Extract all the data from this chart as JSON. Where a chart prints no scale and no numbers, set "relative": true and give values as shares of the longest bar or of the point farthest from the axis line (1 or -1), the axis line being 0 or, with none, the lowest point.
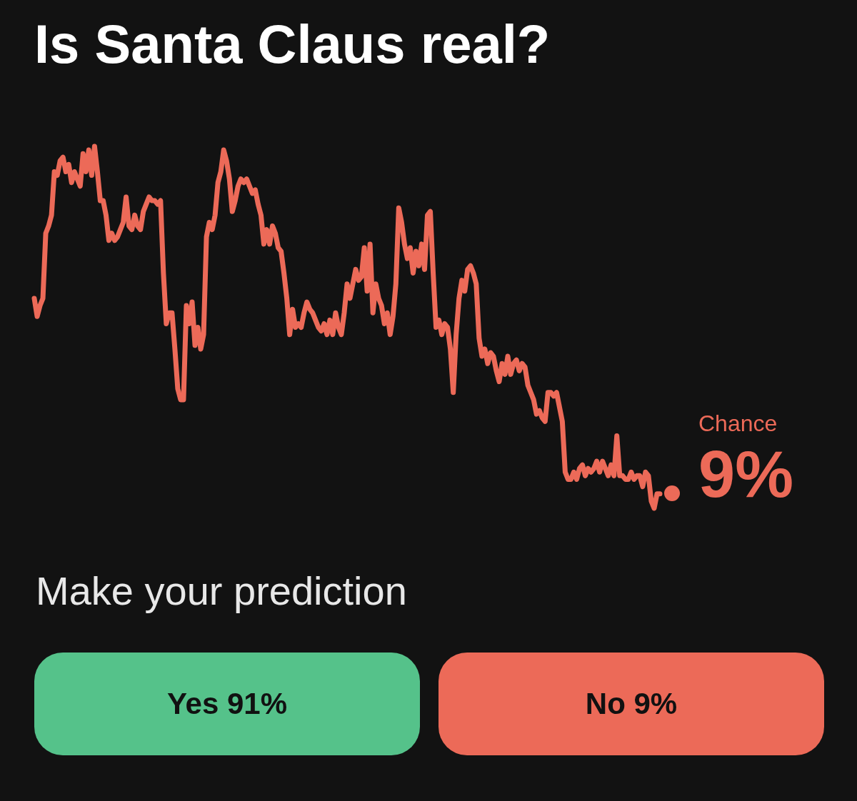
{
  "chart_data": {
    "type": "line",
    "title": "Is Santa Claus real?",
    "relative": true,
    "legend": false,
    "grid": false,
    "marker": "none",
    "line_style": "solid",
    "annotations": [
      "Chance",
      "9%",
      "Make your prediction",
      "Yes 91%",
      "No 9%"
    ],
    "categories": [
      null,
      null,
      null,
      null,
      null,
      null,
      null,
      null,
      null,
      null,
      null,
      null,
      null,
      null,
      null,
      null,
      null,
      null,
      null,
      null,
      null,
      null,
      null,
      null,
      null,
      null,
      null,
      null,
      null,
      null,
      null,
      null,
      null,
      null,
      null,
      null,
      null,
      null,
      null,
      null,
      null,
      null,
      null,
      null,
      null,
      null,
      null,
      null,
      null,
      null,
      null,
      null,
      null,
      null,
      null,
      null,
      null,
      null,
      null,
      null,
      null,
      null,
      null,
      null,
      null,
      null,
      null,
      null,
      null,
      null,
      null,
      null,
      null,
      null,
      null,
      null,
      null,
      null,
      null,
      null,
      null,
      null,
      null,
      null,
      null,
      null,
      null,
      null,
      null,
      null,
      null,
      null,
      null,
      null,
      null,
      null,
      null,
      null,
      null,
      null,
      null,
      null,
      null,
      null,
      null,
      null,
      null,
      null,
      null,
      null,
      null,
      null,
      null,
      null,
      null,
      null,
      null,
      null,
      null,
      null,
      null,
      null,
      null,
      null,
      null,
      null,
      null,
      null,
      null,
      null,
      null,
      null,
      null,
      null,
      null,
      null,
      null,
      null,
      null,
      null,
      null,
      null,
      null,
      null,
      null,
      null,
      null,
      null,
      null,
      null,
      null,
      null,
      null,
      null,
      null,
      null,
      null,
      null,
      null,
      null,
      null,
      null,
      null,
      null,
      null,
      null,
      null,
      null,
      null,
      null,
      null,
      null,
      null,
      null,
      null,
      null,
      null,
      null,
      null,
      null,
      null,
      null,
      null,
      null,
      null,
      null,
      null,
      null,
      null,
      null,
      null,
      null,
      null,
      null,
      null,
      null,
      null,
      null,
      null,
      null,
      null,
      null,
      null,
      null,
      null,
      null,
      null,
      null,
      null,
      null,
      null,
      null,
      null,
      null,
      null,
      null,
      null,
      null,
      null
    ],
    "series": [
      {
        "color": "#ec6a58",
        "values": [
          0.58,
          0.53,
          0.56,
          0.58,
          0.76,
          0.78,
          0.81,
          0.93,
          0.92,
          0.96,
          0.97,
          0.93,
          0.95,
          0.9,
          0.93,
          0.91,
          0.89,
          0.98,
          0.93,
          0.99,
          0.92,
          1,
          0.93,
          0.85,
          0.85,
          0.81,
          0.74,
          0.76,
          0.74,
          0.75,
          0.77,
          0.79,
          0.86,
          0.78,
          0.77,
          0.81,
          0.78,
          0.77,
          0.82,
          0.84,
          0.86,
          0.85,
          0.85,
          0.84,
          0.85,
          0.65,
          0.51,
          0.54,
          0.54,
          0.44,
          0.33,
          0.3,
          0.3,
          0.56,
          0.51,
          0.57,
          0.45,
          0.5,
          0.44,
          0.48,
          0.75,
          0.79,
          0.77,
          0.81,
          0.9,
          0.93,
          0.99,
          0.96,
          0.91,
          0.82,
          0.85,
          0.89,
          0.91,
          0.9,
          0.91,
          0.89,
          0.87,
          0.88,
          0.84,
          0.81,
          0.73,
          0.77,
          0.73,
          0.78,
          0.76,
          0.72,
          0.71,
          0.65,
          0.58,
          0.48,
          0.55,
          0.5,
          0.51,
          0.5,
          0.54,
          0.57,
          0.55,
          0.54,
          0.52,
          0.5,
          0.49,
          0.51,
          0.48,
          0.52,
          0.48,
          0.54,
          0.5,
          0.48,
          0.54,
          0.62,
          0.58,
          0.62,
          0.66,
          0.63,
          0.64,
          0.72,
          0.6,
          0.73,
          0.54,
          0.62,
          0.58,
          0.56,
          0.51,
          0.54,
          0.48,
          0.53,
          0.62,
          0.83,
          0.79,
          0.73,
          0.69,
          0.72,
          0.65,
          0.71,
          0.67,
          0.73,
          0.66,
          0.81,
          0.82,
          0.65,
          0.5,
          0.52,
          0.48,
          0.51,
          0.5,
          0.44,
          0.32,
          0.48,
          0.58,
          0.63,
          0.6,
          0.66,
          0.67,
          0.65,
          0.62,
          0.47,
          0.42,
          0.44,
          0.4,
          0.43,
          0.42,
          0.38,
          0.35,
          0.4,
          0.37,
          0.42,
          0.37,
          0.4,
          0.41,
          0.38,
          0.4,
          0.39,
          0.34,
          0.32,
          0.3,
          0.26,
          0.27,
          0.25,
          0.24,
          0.32,
          0.32,
          0.31,
          0.32,
          0.28,
          0.24,
          0.1,
          0.08,
          0.08,
          0.1,
          0.08,
          0.11,
          0.12,
          0.09,
          0.11,
          0.1,
          0.11,
          0.13,
          0.1,
          0.13,
          0.11,
          0.09,
          0.12,
          0.09,
          0.2,
          0.09,
          0.09,
          0.08,
          0.08,
          0.1,
          0.08,
          0.09,
          0.09,
          0.06,
          0.1,
          0.09,
          0.02,
          0,
          0.04,
          0.04
        ]
      }
    ]
  }
}
